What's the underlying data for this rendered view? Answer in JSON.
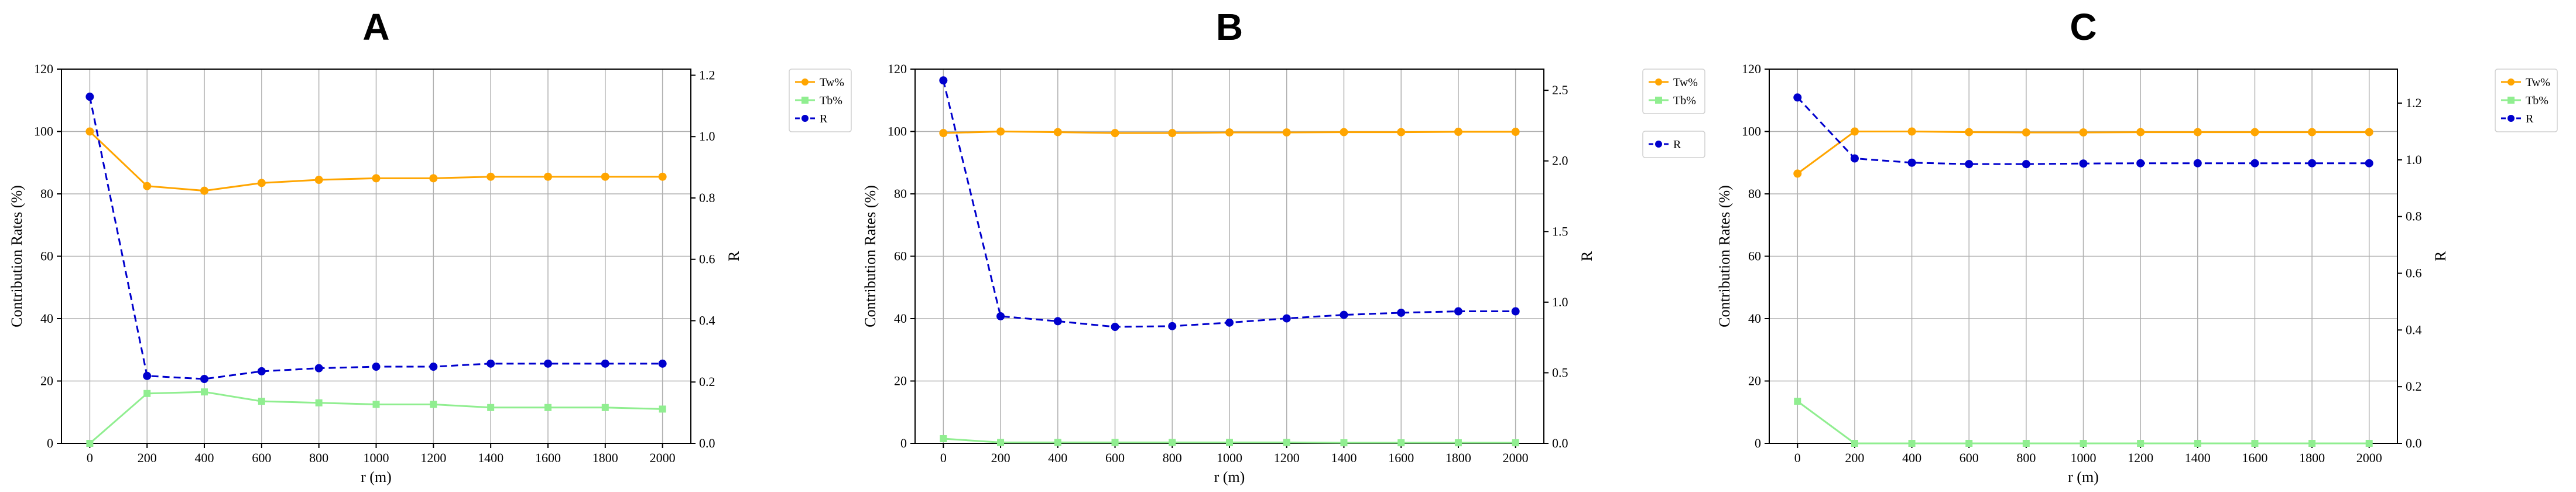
{
  "chart_data": [
    {
      "type": "line",
      "title": "A",
      "xlabel": "r (m)",
      "ylabel": "Contribution Rates (%)",
      "y2label": "R",
      "x": [
        0,
        200,
        400,
        600,
        800,
        1000,
        1200,
        1400,
        1600,
        1800,
        2000
      ],
      "xticks": [
        0,
        200,
        400,
        600,
        800,
        1000,
        1200,
        1400,
        1600,
        1800,
        2000
      ],
      "ylim": [
        0,
        120
      ],
      "yticks": [
        0,
        20,
        40,
        60,
        80,
        100,
        120
      ],
      "y2lim": [
        0,
        1.22
      ],
      "y2ticks": [
        0.0,
        0.2,
        0.4,
        0.6,
        0.8,
        1.0,
        1.2
      ],
      "grid": true,
      "legend_position": "right",
      "series": [
        {
          "name": "Tw%",
          "axis": "left",
          "color": "#FFA500",
          "marker": "circle",
          "dash": false,
          "values": [
            100,
            82.5,
            81,
            83.5,
            84.5,
            85,
            85,
            85.5,
            85.5,
            85.5,
            85.5
          ]
        },
        {
          "name": "Tb%",
          "axis": "left",
          "color": "#90EE90",
          "marker": "square",
          "dash": false,
          "values": [
            0,
            16,
            16.5,
            13.5,
            13,
            12.5,
            12.5,
            11.5,
            11.5,
            11.5,
            11
          ]
        },
        {
          "name": "R",
          "axis": "right",
          "color": "#0000CD",
          "marker": "circle",
          "dash": true,
          "values": [
            1.13,
            0.22,
            0.21,
            0.235,
            0.245,
            0.25,
            0.25,
            0.26,
            0.26,
            0.26,
            0.26
          ]
        }
      ]
    },
    {
      "type": "line",
      "title": "B",
      "xlabel": "r (m)",
      "ylabel": "Contribution Rates (%)",
      "y2label": "R",
      "x": [
        0,
        200,
        400,
        600,
        800,
        1000,
        1200,
        1400,
        1600,
        1800,
        2000
      ],
      "xticks": [
        0,
        200,
        400,
        600,
        800,
        1000,
        1200,
        1400,
        1600,
        1800,
        2000
      ],
      "ylim": [
        0,
        120
      ],
      "yticks": [
        0,
        20,
        40,
        60,
        80,
        100,
        120
      ],
      "y2lim": [
        0,
        2.65
      ],
      "y2ticks": [
        0.0,
        0.5,
        1.0,
        1.5,
        2.0,
        2.5
      ],
      "grid": true,
      "legend_position": "right",
      "series": [
        {
          "name": "Tw%",
          "axis": "left",
          "color": "#FFA500",
          "marker": "circle",
          "dash": false,
          "values": [
            99.5,
            100,
            99.8,
            99.5,
            99.5,
            99.7,
            99.7,
            99.8,
            99.8,
            99.9,
            99.9
          ]
        },
        {
          "name": "Tb%",
          "axis": "left",
          "color": "#90EE90",
          "marker": "square",
          "dash": false,
          "values": [
            1.5,
            0.3,
            0.3,
            0.3,
            0.3,
            0.3,
            0.3,
            0.2,
            0.2,
            0.2,
            0.2
          ]
        },
        {
          "name": "R",
          "axis": "right",
          "color": "#0000CD",
          "marker": "circle",
          "dash": true,
          "values": [
            2.57,
            0.9,
            0.865,
            0.825,
            0.83,
            0.855,
            0.885,
            0.91,
            0.925,
            0.935,
            0.935
          ]
        }
      ]
    },
    {
      "type": "line",
      "title": "C",
      "xlabel": "r (m)",
      "ylabel": "Contribution Rates (%)",
      "y2label": "R",
      "x": [
        0,
        200,
        400,
        600,
        800,
        1000,
        1200,
        1400,
        1600,
        1800,
        2000
      ],
      "xticks": [
        0,
        200,
        400,
        600,
        800,
        1000,
        1200,
        1400,
        1600,
        1800,
        2000
      ],
      "ylim": [
        0,
        120
      ],
      "yticks": [
        0,
        20,
        40,
        60,
        80,
        100,
        120
      ],
      "y2lim": [
        0,
        1.32
      ],
      "y2ticks": [
        0.0,
        0.2,
        0.4,
        0.6,
        0.8,
        1.0,
        1.2
      ],
      "grid": true,
      "legend_position": "right",
      "series": [
        {
          "name": "Tw%",
          "axis": "left",
          "color": "#FFA500",
          "marker": "circle",
          "dash": false,
          "values": [
            86.5,
            100,
            100,
            99.8,
            99.7,
            99.7,
            99.8,
            99.8,
            99.8,
            99.8,
            99.8
          ]
        },
        {
          "name": "Tb%",
          "axis": "left",
          "color": "#90EE90",
          "marker": "square",
          "dash": false,
          "values": [
            13.5,
            0,
            0,
            0,
            0,
            0,
            0,
            0,
            0,
            0,
            0
          ]
        },
        {
          "name": "R",
          "axis": "right",
          "color": "#0000CD",
          "marker": "circle",
          "dash": true,
          "values": [
            1.22,
            1.005,
            0.99,
            0.985,
            0.985,
            0.987,
            0.988,
            0.988,
            0.988,
            0.988,
            0.988
          ]
        }
      ]
    }
  ]
}
